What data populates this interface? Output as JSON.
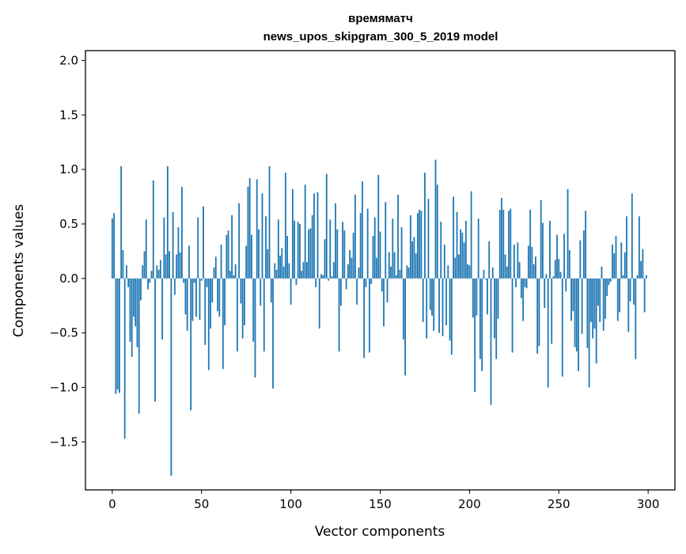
{
  "chart_data": {
    "type": "bar",
    "title": "времяматч",
    "subtitle": "news_upos_skipgram_300_5_2019 model",
    "xlabel": "Vector components",
    "ylabel": "Components values",
    "xlim": [
      -15,
      315
    ],
    "ylim": [
      -1.94,
      2.09
    ],
    "xticks": [
      0,
      50,
      100,
      150,
      200,
      250,
      300
    ],
    "yticks": [
      -1.5,
      -1.0,
      -0.5,
      0.0,
      0.5,
      1.0,
      1.5,
      2.0
    ],
    "ytick_labels": [
      "−1.5",
      "−1.0",
      "−0.5",
      "0.0",
      "0.5",
      "1.0",
      "1.5",
      "2.0"
    ],
    "bar_color": "#1f77b4",
    "grid": false,
    "values": [
      0.55,
      0.6,
      -1.06,
      -1.02,
      -1.05,
      1.03,
      0.26,
      -1.47,
      0.12,
      -0.08,
      -0.58,
      -0.72,
      -0.35,
      -0.44,
      -0.63,
      -1.24,
      -0.2,
      0.12,
      0.25,
      0.54,
      -0.1,
      -0.04,
      0.07,
      0.9,
      -1.13,
      0.12,
      0.08,
      0.17,
      -0.56,
      0.56,
      0.22,
      1.03,
      0.25,
      -1.81,
      0.61,
      -0.15,
      0.22,
      0.47,
      0.24,
      0.84,
      -0.04,
      -0.33,
      -0.48,
      0.3,
      -1.21,
      -0.39,
      -0.04,
      -0.35,
      0.56,
      -0.38,
      -0.02,
      0.66,
      -0.61,
      -0.08,
      -0.84,
      -0.46,
      -0.22,
      0.1,
      0.2,
      -0.3,
      -0.35,
      0.31,
      -0.83,
      -0.43,
      0.4,
      0.44,
      0.07,
      0.58,
      0.03,
      0.13,
      -0.67,
      0.69,
      -0.23,
      -0.55,
      -0.43,
      0.3,
      0.84,
      0.92,
      0.4,
      -0.58,
      -0.91,
      0.91,
      0.45,
      -0.25,
      0.78,
      -0.67,
      0.57,
      0.27,
      1.03,
      -0.22,
      -1.01,
      0.14,
      0.08,
      0.54,
      0.21,
      0.28,
      0.11,
      0.97,
      0.39,
      0.14,
      -0.24,
      0.82,
      0.53,
      -0.06,
      0.52,
      0.5,
      0.07,
      0.15,
      0.86,
      0.15,
      0.45,
      0.46,
      0.58,
      0.78,
      -0.08,
      0.79,
      -0.46,
      0.04,
      0.03,
      0.36,
      0.96,
      -0.02,
      0.54,
      0.02,
      0.15,
      0.69,
      0.45,
      -0.67,
      -0.25,
      0.52,
      0.44,
      -0.1,
      0.13,
      0.26,
      0.19,
      0.42,
      0.77,
      -0.24,
      0.1,
      0.6,
      0.89,
      -0.73,
      -0.08,
      0.64,
      -0.68,
      -0.05,
      0.39,
      0.56,
      0.19,
      0.95,
      0.43,
      -0.12,
      -0.44,
      0.7,
      -0.22,
      0.24,
      0.11,
      0.55,
      0.24,
      0.03,
      0.77,
      0.08,
      0.47,
      -0.56,
      -0.89,
      0.12,
      0.1,
      0.58,
      0.34,
      0.38,
      0.23,
      0.6,
      0.63,
      0.62,
      -0.4,
      0.97,
      -0.55,
      0.73,
      -0.29,
      -0.34,
      -0.48,
      1.09,
      0.86,
      -0.5,
      0.52,
      -0.53,
      0.31,
      -0.43,
      0.12,
      -0.57,
      -0.7,
      0.75,
      0.19,
      0.61,
      0.22,
      0.45,
      0.42,
      0.33,
      0.53,
      0.13,
      0.12,
      0.8,
      -0.36,
      -1.04,
      -0.34,
      0.55,
      -0.74,
      -0.85,
      0.08,
      -0.01,
      -0.33,
      0.34,
      -1.16,
      0.1,
      -0.55,
      -0.74,
      -0.37,
      0.63,
      0.74,
      0.63,
      0.22,
      0.11,
      0.62,
      0.64,
      -0.68,
      0.31,
      -0.08,
      0.33,
      0.15,
      -0.18,
      -0.39,
      -0.08,
      -0.09,
      0.3,
      0.63,
      0.29,
      0.13,
      0.2,
      -0.69,
      -0.62,
      0.72,
      0.51,
      -0.27,
      0.04,
      -1.0,
      0.53,
      -0.6,
      0.02,
      0.17,
      0.4,
      0.18,
      0.06,
      -0.9,
      0.41,
      -0.12,
      0.82,
      0.26,
      -0.39,
      -0.3,
      -0.63,
      -0.67,
      -0.85,
      0.35,
      -0.51,
      0.44,
      0.62,
      -0.64,
      -1.0,
      -0.4,
      -0.55,
      -0.46,
      -0.78,
      -0.25,
      -0.4,
      0.11,
      -0.48,
      -0.37,
      -0.16,
      -0.06,
      -0.03,
      0.31,
      0.23,
      0.39,
      -0.39,
      -0.31,
      0.33,
      0.03,
      0.24,
      0.57,
      -0.49,
      -0.21,
      0.78,
      -0.24,
      -0.74,
      0.03,
      0.57,
      0.16,
      0.27,
      -0.31,
      0.03
    ]
  }
}
